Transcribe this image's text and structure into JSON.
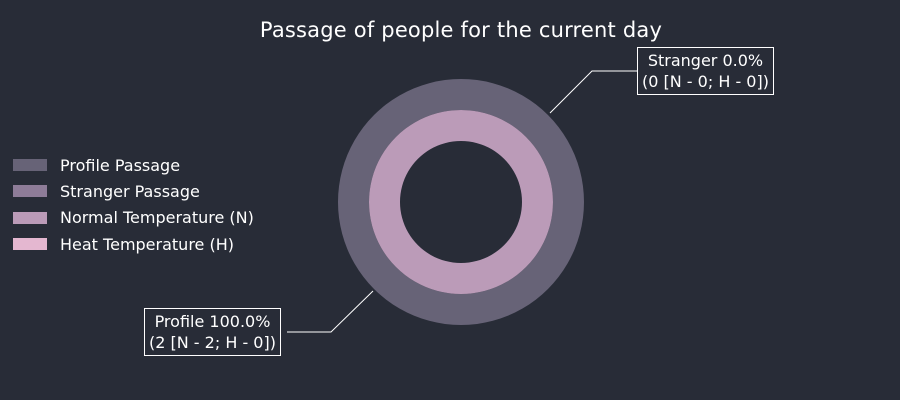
{
  "chart_data": {
    "type": "pie",
    "title": "Passage of people for the current day",
    "legend": {
      "placement": "left",
      "entries": [
        {
          "label": "Profile Passage",
          "color": "#676377"
        },
        {
          "label": "Stranger Passage",
          "color": "#8e7c98"
        },
        {
          "label": "Normal Temperature (N)",
          "color": "#bb9bb8"
        },
        {
          "label": "Heat Temperature (H)",
          "color": "#e4b7d0"
        }
      ]
    },
    "rings": [
      {
        "ring": "outer",
        "slices": [
          {
            "label": "Profile Passage",
            "value": 2,
            "percent": 100.0,
            "color": "#676377"
          },
          {
            "label": "Stranger Passage",
            "value": 0,
            "percent": 0.0,
            "color": "#8e7c98"
          }
        ]
      },
      {
        "ring": "inner",
        "slices": [
          {
            "label": "Normal Temperature (N)",
            "value": 2,
            "color": "#bb9bb8"
          },
          {
            "label": "Heat Temperature (H)",
            "value": 0,
            "color": "#e4b7d0"
          }
        ]
      }
    ],
    "annotations": {
      "stranger": {
        "line1": "Stranger 0.0%",
        "line2": "(0 [N - 0; H - 0])"
      },
      "profile": {
        "line1": "Profile 100.0%",
        "line2": "(2 [N - 2; H - 0])"
      }
    }
  }
}
